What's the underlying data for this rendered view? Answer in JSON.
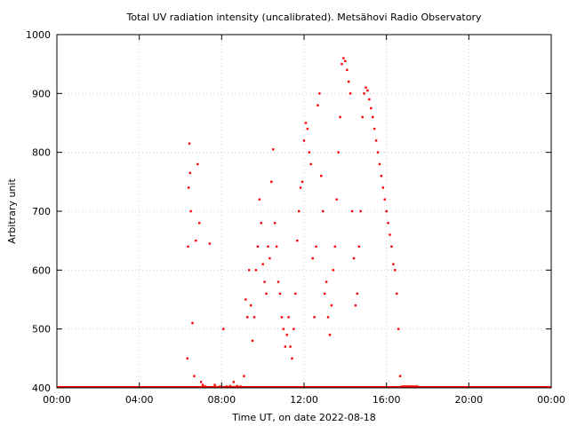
{
  "chart_data": {
    "type": "scatter",
    "title": "Total UV radiation intensity (uncalibrated). Metsähovi Radio Observatory",
    "xlabel": "Time UT, on date 2022-08-18",
    "ylabel": "Arbitrary unit",
    "xlim": [
      "00:00",
      "24:00"
    ],
    "ylim": [
      400,
      1000
    ],
    "x_ticks": [
      "00:00",
      "04:00",
      "08:00",
      "12:00",
      "16:00",
      "20:00",
      "00:00"
    ],
    "y_ticks": [
      400,
      500,
      600,
      700,
      800,
      900,
      1000
    ],
    "grid": true,
    "legend": "none",
    "marker_color": "#ff0000",
    "baseline_value": 400,
    "series": [
      {
        "x": [
          "06:20",
          "06:22",
          "06:24",
          "06:26",
          "06:28",
          "06:30",
          "06:35",
          "06:40",
          "06:45",
          "06:50",
          "06:55",
          "07:00",
          "07:05",
          "07:12",
          "07:25",
          "07:40",
          "07:55",
          "08:05",
          "08:15",
          "08:25",
          "08:35",
          "08:45",
          "08:55",
          "09:05",
          "09:10",
          "09:15",
          "09:20",
          "09:25",
          "09:30",
          "09:35",
          "09:40",
          "09:45",
          "09:50",
          "09:55",
          "10:00",
          "10:05",
          "10:10",
          "10:15",
          "10:20",
          "10:25",
          "10:30",
          "10:35",
          "10:40",
          "10:45",
          "10:50",
          "10:55",
          "11:00",
          "11:05",
          "11:10",
          "11:15",
          "11:20",
          "11:25",
          "11:30",
          "11:35",
          "11:40",
          "11:45",
          "11:50",
          "11:55",
          "12:00",
          "12:05",
          "12:10",
          "12:15",
          "12:20",
          "12:25",
          "12:30",
          "12:35",
          "12:40",
          "12:45",
          "12:50",
          "12:55",
          "13:00",
          "13:05",
          "13:10",
          "13:15",
          "13:20",
          "13:25",
          "13:30",
          "13:35",
          "13:40",
          "13:45",
          "13:50",
          "13:55",
          "14:00",
          "14:05",
          "14:10",
          "14:15",
          "14:20",
          "14:25",
          "14:30",
          "14:35",
          "14:40",
          "14:45",
          "14:50",
          "14:55",
          "15:00",
          "15:05",
          "15:10",
          "15:15",
          "15:20",
          "15:25",
          "15:30",
          "15:35",
          "15:40",
          "15:45",
          "15:50",
          "15:55",
          "16:00",
          "16:05",
          "16:10",
          "16:15",
          "16:20",
          "16:25",
          "16:30",
          "16:35",
          "16:40",
          "16:45",
          "16:50",
          "16:55",
          "17:00",
          "17:05",
          "17:10",
          "17:15",
          "17:20",
          "17:25",
          "17:30"
        ],
        "y": [
          450,
          640,
          740,
          815,
          765,
          700,
          510,
          420,
          650,
          780,
          680,
          410,
          405,
          402,
          645,
          405,
          402,
          500,
          402,
          403,
          410,
          403,
          402,
          420,
          550,
          520,
          600,
          540,
          480,
          520,
          600,
          640,
          720,
          680,
          610,
          580,
          560,
          640,
          620,
          750,
          805,
          680,
          640,
          580,
          560,
          520,
          500,
          470,
          490,
          520,
          470,
          450,
          500,
          560,
          650,
          700,
          740,
          750,
          820,
          850,
          840,
          800,
          780,
          620,
          520,
          640,
          880,
          900,
          760,
          700,
          560,
          580,
          520,
          490,
          540,
          600,
          640,
          720,
          800,
          860,
          950,
          960,
          955,
          940,
          920,
          900,
          700,
          620,
          540,
          560,
          640,
          700,
          860,
          900,
          910,
          905,
          890,
          875,
          860,
          840,
          820,
          800,
          780,
          760,
          740,
          720,
          700,
          680,
          660,
          640,
          610,
          600,
          560,
          500,
          420,
          402,
          402,
          401,
          400,
          400,
          400,
          400,
          400,
          400,
          400
        ]
      }
    ]
  }
}
